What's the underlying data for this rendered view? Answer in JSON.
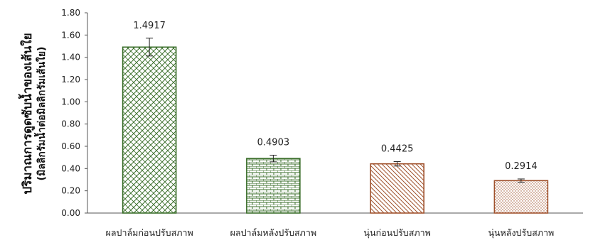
{
  "chart_data": {
    "type": "bar",
    "ylabel_line1": "ปริมาณการดูดซับน้ำของเส้นใย",
    "ylabel_line2": "(มิลลิกรัมน้ำต่อมิลลิกรัมเส้นใย)",
    "ylim": [
      0,
      1.8
    ],
    "ytick_step": 0.2,
    "ytick_labels": [
      "0.00",
      "0.20",
      "0.40",
      "0.60",
      "0.80",
      "1.00",
      "1.20",
      "1.40",
      "1.60",
      "1.80"
    ],
    "grid": false,
    "categories": [
      "ผลปาล์มก่อนปรับสภาพ",
      "ผลปาล์มหลังปรับสภาพ",
      "นุ่นก่อนปรับสภาพ",
      "นุ่นหลังปรับสภาพ"
    ],
    "values": [
      1.4917,
      0.4903,
      0.4425,
      0.2914
    ],
    "value_labels": [
      "1.4917",
      "0.4903",
      "0.4425",
      "0.2914"
    ],
    "error": [
      0.08,
      0.03,
      0.02,
      0.015
    ],
    "bar_colors": [
      "#3a6e2a",
      "#3a6e2a",
      "#a0522d",
      "#a0522d"
    ],
    "bar_patterns": [
      "diagonal-cross",
      "brick",
      "diagonal-lines",
      "dots"
    ]
  }
}
